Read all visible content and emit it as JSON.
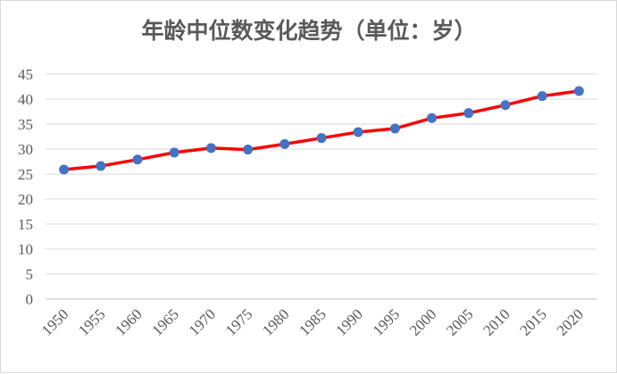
{
  "chart_data": {
    "type": "line",
    "title": "年龄中位数变化趋势（单位：岁）",
    "xlabel": "",
    "ylabel": "",
    "x": [
      "1950",
      "1955",
      "1960",
      "1965",
      "1970",
      "1975",
      "1980",
      "1985",
      "1990",
      "1995",
      "2000",
      "2005",
      "2010",
      "2015",
      "2020"
    ],
    "series": [
      {
        "values": [
          25.9,
          26.6,
          27.9,
          29.3,
          30.2,
          29.9,
          31.0,
          32.2,
          33.4,
          34.1,
          36.2,
          37.2,
          38.8,
          40.6,
          41.6
        ]
      }
    ],
    "ylim": [
      0,
      45
    ],
    "yticks": [
      0,
      5,
      10,
      15,
      20,
      25,
      30,
      35,
      40,
      45
    ],
    "grid": true,
    "legend": "none",
    "colors": {
      "line": "#ff0000",
      "marker": "#4472c4"
    }
  }
}
